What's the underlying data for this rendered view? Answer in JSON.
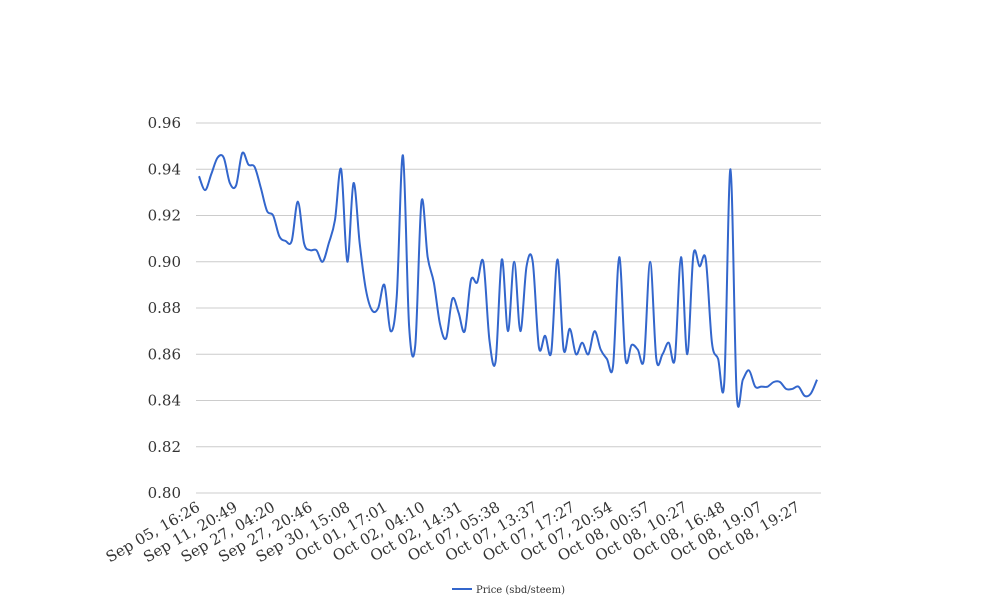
{
  "chart_data": {
    "type": "line",
    "title": "",
    "xlabel": "",
    "ylabel": "",
    "ylim": [
      0.8,
      0.96
    ],
    "yticks": [
      "0.80",
      "0.82",
      "0.84",
      "0.86",
      "0.88",
      "0.90",
      "0.92",
      "0.94",
      "0.96"
    ],
    "xticks": [
      "Sep 05, 16:26",
      "Sep 11, 20:49",
      "Sep 27, 04:20",
      "Sep 27, 20:46",
      "Sep 30, 15:08",
      "Oct 01, 17:01",
      "Oct 02, 04:10",
      "Oct 02, 14:31",
      "Oct 07, 05:38",
      "Oct 07, 13:37",
      "Oct 07, 17:27",
      "Oct 07, 20:54",
      "Oct 08, 00:57",
      "Oct 08, 10:27",
      "Oct 08, 16:48",
      "Oct 08, 19:07",
      "Oct 08, 19:27"
    ],
    "grid": true,
    "legend_position": "bottom",
    "line_color": "#3366cc",
    "series": [
      {
        "name": "Price (sbd/steem)",
        "values": [
          0.937,
          0.931,
          0.938,
          0.945,
          0.945,
          0.934,
          0.933,
          0.947,
          0.942,
          0.941,
          0.932,
          0.922,
          0.92,
          0.911,
          0.909,
          0.909,
          0.926,
          0.908,
          0.905,
          0.905,
          0.9,
          0.908,
          0.918,
          0.94,
          0.9,
          0.934,
          0.908,
          0.888,
          0.879,
          0.88,
          0.89,
          0.87,
          0.885,
          0.946,
          0.872,
          0.864,
          0.926,
          0.902,
          0.891,
          0.873,
          0.867,
          0.884,
          0.878,
          0.87,
          0.892,
          0.891,
          0.9,
          0.866,
          0.857,
          0.901,
          0.87,
          0.9,
          0.87,
          0.898,
          0.9,
          0.863,
          0.868,
          0.861,
          0.901,
          0.862,
          0.871,
          0.86,
          0.865,
          0.86,
          0.87,
          0.862,
          0.858,
          0.855,
          0.902,
          0.858,
          0.864,
          0.862,
          0.858,
          0.9,
          0.858,
          0.86,
          0.865,
          0.858,
          0.902,
          0.86,
          0.903,
          0.898,
          0.901,
          0.865,
          0.858,
          0.848,
          0.94,
          0.843,
          0.849,
          0.853,
          0.846,
          0.846,
          0.846,
          0.848,
          0.848,
          0.845,
          0.845,
          0.846,
          0.842,
          0.843,
          0.849
        ]
      }
    ]
  }
}
